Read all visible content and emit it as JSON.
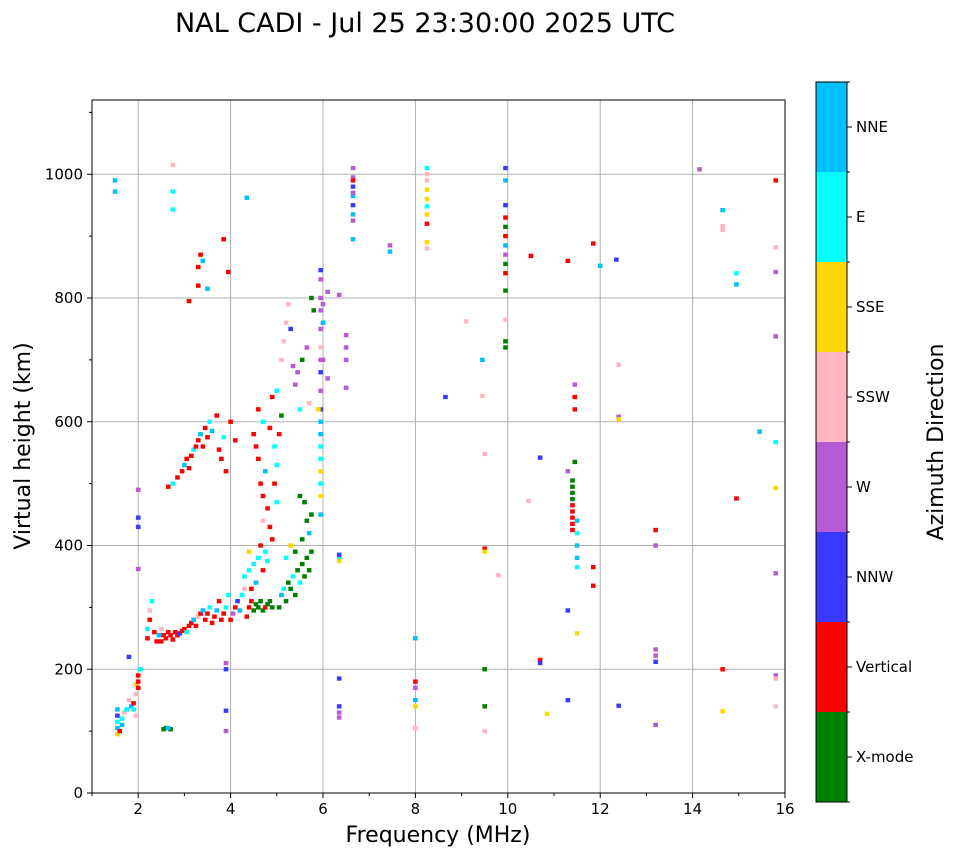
{
  "chart_data": {
    "type": "scatter",
    "title": "NAL CADI - Jul 25 23:30:00 2025 UTC",
    "xlabel": "Frequency (MHz)",
    "ylabel": "Virtual height (km)",
    "xlim": [
      1,
      16
    ],
    "ylim": [
      0,
      1120
    ],
    "xticks": [
      2,
      4,
      6,
      8,
      10,
      12,
      14,
      16
    ],
    "yticks": [
      0,
      200,
      400,
      600,
      800,
      1000
    ],
    "grid": true,
    "colorbar": {
      "label": "Azimuth Direction",
      "categories": [
        "X-mode",
        "Vertical",
        "NNW",
        "W",
        "SSW",
        "SSE",
        "E",
        "NNE"
      ],
      "colors": [
        "#008000",
        "#ff0000",
        "#3a3aff",
        "#b65ad6",
        "#ffb6c1",
        "#ffd700",
        "#00ffff",
        "#00bfff"
      ]
    },
    "point_format": [
      "frequency_mhz",
      "height_km",
      "category_index"
    ],
    "points": [
      [
        1.55,
        95,
        5
      ],
      [
        1.55,
        105,
        7
      ],
      [
        1.55,
        115,
        6
      ],
      [
        1.55,
        125,
        2
      ],
      [
        1.55,
        135,
        7
      ],
      [
        1.6,
        100,
        1
      ],
      [
        1.65,
        110,
        7
      ],
      [
        1.65,
        120,
        6
      ],
      [
        1.7,
        130,
        4
      ],
      [
        1.5,
        990,
        7
      ],
      [
        1.5,
        972,
        7
      ],
      [
        1.75,
        135,
        6
      ],
      [
        1.8,
        150,
        4
      ],
      [
        1.85,
        140,
        7
      ],
      [
        1.9,
        135,
        6
      ],
      [
        1.9,
        145,
        1
      ],
      [
        1.95,
        160,
        4
      ],
      [
        1.95,
        175,
        5
      ],
      [
        2.0,
        180,
        1
      ],
      [
        2.0,
        190,
        1
      ],
      [
        2.05,
        200,
        6
      ],
      [
        2.0,
        170,
        1
      ],
      [
        1.95,
        125,
        4
      ],
      [
        1.8,
        220,
        2
      ],
      [
        2.2,
        250,
        1
      ],
      [
        2.2,
        265,
        6
      ],
      [
        2.25,
        280,
        1
      ],
      [
        2.25,
        295,
        4
      ],
      [
        2.3,
        310,
        6
      ],
      [
        2.35,
        260,
        1
      ],
      [
        2.4,
        245,
        1
      ],
      [
        2.45,
        255,
        7
      ],
      [
        2.5,
        245,
        1
      ],
      [
        2.5,
        265,
        4
      ],
      [
        2.55,
        255,
        1
      ],
      [
        2.6,
        250,
        1
      ],
      [
        2.65,
        260,
        1
      ],
      [
        2.7,
        255,
        1
      ],
      [
        2.75,
        248,
        1
      ],
      [
        2.8,
        260,
        1
      ],
      [
        2.85,
        255,
        1
      ],
      [
        2.9,
        258,
        2
      ],
      [
        2.95,
        262,
        1
      ],
      [
        3.0,
        265,
        1
      ],
      [
        3.05,
        260,
        6
      ],
      [
        3.1,
        270,
        1
      ],
      [
        3.15,
        275,
        1
      ],
      [
        3.2,
        280,
        7
      ],
      [
        3.25,
        270,
        1
      ],
      [
        3.3,
        285,
        4
      ],
      [
        3.35,
        290,
        1
      ],
      [
        3.4,
        295,
        7
      ],
      [
        3.45,
        280,
        1
      ],
      [
        3.5,
        290,
        1
      ],
      [
        3.55,
        300,
        6
      ],
      [
        3.6,
        275,
        1
      ],
      [
        3.65,
        285,
        1
      ],
      [
        3.7,
        295,
        7
      ],
      [
        3.75,
        310,
        1
      ],
      [
        3.8,
        280,
        1
      ],
      [
        3.85,
        290,
        1
      ],
      [
        3.9,
        300,
        6
      ],
      [
        3.95,
        320,
        6
      ],
      [
        4.0,
        280,
        1
      ],
      [
        4.05,
        290,
        3
      ],
      [
        4.1,
        300,
        1
      ],
      [
        4.15,
        310,
        2
      ],
      [
        4.2,
        295,
        7
      ],
      [
        4.25,
        320,
        6
      ],
      [
        4.3,
        330,
        4
      ],
      [
        4.35,
        285,
        1
      ],
      [
        4.4,
        300,
        1
      ],
      [
        4.45,
        310,
        1
      ],
      [
        4.5,
        295,
        0
      ],
      [
        4.55,
        305,
        0
      ],
      [
        4.6,
        300,
        0
      ],
      [
        4.65,
        310,
        0
      ],
      [
        4.7,
        295,
        0
      ],
      [
        4.75,
        300,
        1
      ],
      [
        4.8,
        305,
        0
      ],
      [
        4.85,
        310,
        0
      ],
      [
        4.9,
        300,
        0
      ],
      [
        4.3,
        350,
        6
      ],
      [
        4.4,
        360,
        6
      ],
      [
        4.5,
        370,
        6
      ],
      [
        4.6,
        380,
        6
      ],
      [
        4.7,
        360,
        1
      ],
      [
        4.8,
        375,
        6
      ],
      [
        4.55,
        340,
        7
      ],
      [
        4.45,
        330,
        1
      ],
      [
        4.65,
        400,
        1
      ],
      [
        4.75,
        390,
        6
      ],
      [
        4.4,
        390,
        5
      ],
      [
        5.05,
        300,
        0
      ],
      [
        5.1,
        320,
        7
      ],
      [
        5.15,
        330,
        6
      ],
      [
        5.2,
        310,
        0
      ],
      [
        5.25,
        340,
        0
      ],
      [
        5.3,
        330,
        0
      ],
      [
        5.35,
        350,
        6
      ],
      [
        5.4,
        320,
        0
      ],
      [
        5.45,
        360,
        0
      ],
      [
        5.5,
        340,
        6
      ],
      [
        5.55,
        370,
        0
      ],
      [
        5.6,
        350,
        0
      ],
      [
        5.65,
        380,
        0
      ],
      [
        5.7,
        360,
        0
      ],
      [
        5.75,
        390,
        0
      ],
      [
        5.2,
        380,
        6
      ],
      [
        5.3,
        400,
        5
      ],
      [
        5.4,
        390,
        0
      ],
      [
        5.55,
        410,
        0
      ],
      [
        5.65,
        440,
        0
      ],
      [
        5.7,
        420,
        7
      ],
      [
        5.75,
        450,
        0
      ],
      [
        5.6,
        470,
        0
      ],
      [
        5.5,
        480,
        0
      ],
      [
        2.65,
        495,
        1
      ],
      [
        2.75,
        500,
        6
      ],
      [
        2.85,
        510,
        1
      ],
      [
        2.95,
        520,
        1
      ],
      [
        3.0,
        530,
        7
      ],
      [
        3.05,
        540,
        1
      ],
      [
        3.1,
        525,
        1
      ],
      [
        3.15,
        545,
        1
      ],
      [
        3.2,
        555,
        6
      ],
      [
        3.25,
        560,
        1
      ],
      [
        3.3,
        570,
        1
      ],
      [
        3.35,
        580,
        7
      ],
      [
        3.4,
        560,
        1
      ],
      [
        3.45,
        590,
        1
      ],
      [
        3.5,
        575,
        1
      ],
      [
        3.55,
        600,
        6
      ],
      [
        3.6,
        585,
        7
      ],
      [
        3.7,
        610,
        1
      ],
      [
        3.75,
        555,
        1
      ],
      [
        3.8,
        540,
        1
      ],
      [
        3.85,
        575,
        6
      ],
      [
        3.9,
        520,
        1
      ],
      [
        4.0,
        600,
        1
      ],
      [
        4.1,
        570,
        1
      ],
      [
        3.3,
        820,
        1
      ],
      [
        3.3,
        850,
        1
      ],
      [
        3.35,
        870,
        1
      ],
      [
        3.4,
        860,
        7
      ],
      [
        3.5,
        815,
        7
      ],
      [
        3.1,
        795,
        1
      ],
      [
        3.85,
        895,
        1
      ],
      [
        3.95,
        842,
        1
      ],
      [
        4.35,
        962,
        7
      ],
      [
        2.75,
        1015,
        4
      ],
      [
        2.75,
        972,
        6
      ],
      [
        2.75,
        943,
        6
      ],
      [
        4.5,
        580,
        1
      ],
      [
        4.55,
        560,
        1
      ],
      [
        4.6,
        540,
        1
      ],
      [
        4.65,
        500,
        1
      ],
      [
        4.7,
        480,
        1
      ],
      [
        4.75,
        520,
        7
      ],
      [
        4.8,
        460,
        1
      ],
      [
        4.85,
        430,
        1
      ],
      [
        4.9,
        410,
        1
      ],
      [
        4.95,
        500,
        1
      ],
      [
        4.85,
        590,
        1
      ],
      [
        4.95,
        560,
        6
      ],
      [
        5.0,
        530,
        6
      ],
      [
        5.0,
        470,
        6
      ],
      [
        4.7,
        600,
        6
      ],
      [
        4.6,
        620,
        1
      ],
      [
        4.9,
        640,
        1
      ],
      [
        5.05,
        580,
        1
      ],
      [
        5.1,
        610,
        0
      ],
      [
        5.0,
        650,
        6
      ],
      [
        4.7,
        440,
        4
      ],
      [
        5.1,
        700,
        4
      ],
      [
        5.2,
        760,
        4
      ],
      [
        5.25,
        790,
        4
      ],
      [
        5.15,
        730,
        4
      ],
      [
        5.3,
        750,
        2
      ],
      [
        5.35,
        690,
        3
      ],
      [
        5.4,
        660,
        3
      ],
      [
        5.45,
        680,
        3
      ],
      [
        5.5,
        620,
        6
      ],
      [
        5.55,
        700,
        0
      ],
      [
        5.65,
        720,
        3
      ],
      [
        5.7,
        630,
        4
      ],
      [
        5.75,
        800,
        0
      ],
      [
        5.8,
        780,
        0
      ],
      [
        5.95,
        450,
        7
      ],
      [
        5.95,
        480,
        5
      ],
      [
        5.95,
        500,
        6
      ],
      [
        5.95,
        520,
        5
      ],
      [
        5.95,
        540,
        6
      ],
      [
        5.95,
        560,
        6
      ],
      [
        5.95,
        580,
        7
      ],
      [
        5.95,
        600,
        7
      ],
      [
        5.95,
        620,
        2
      ],
      [
        5.95,
        650,
        3
      ],
      [
        5.95,
        680,
        2
      ],
      [
        5.95,
        700,
        3
      ],
      [
        5.95,
        720,
        4
      ],
      [
        5.95,
        750,
        3
      ],
      [
        5.95,
        780,
        3
      ],
      [
        5.95,
        800,
        3
      ],
      [
        5.95,
        830,
        3
      ],
      [
        5.95,
        845,
        2
      ],
      [
        5.9,
        620,
        5
      ],
      [
        6.0,
        790,
        3
      ],
      [
        6.0,
        760,
        7
      ],
      [
        6.0,
        700,
        3
      ],
      [
        6.1,
        810,
        3
      ],
      [
        6.1,
        670,
        3
      ],
      [
        6.35,
        805,
        3
      ],
      [
        6.5,
        740,
        3
      ],
      [
        6.5,
        720,
        3
      ],
      [
        6.5,
        700,
        3
      ],
      [
        6.5,
        655,
        3
      ],
      [
        6.35,
        380,
        6
      ],
      [
        6.35,
        385,
        2
      ],
      [
        6.35,
        375,
        5
      ],
      [
        6.35,
        185,
        2
      ],
      [
        6.35,
        140,
        2
      ],
      [
        6.35,
        130,
        3
      ],
      [
        6.35,
        122,
        3
      ],
      [
        6.65,
        1010,
        3
      ],
      [
        6.65,
        995,
        3
      ],
      [
        6.65,
        980,
        2
      ],
      [
        6.65,
        965,
        7
      ],
      [
        6.65,
        950,
        2
      ],
      [
        6.65,
        935,
        7
      ],
      [
        6.65,
        925,
        3
      ],
      [
        6.65,
        895,
        7
      ],
      [
        6.65,
        990,
        1
      ],
      [
        6.65,
        970,
        3
      ],
      [
        7.45,
        885,
        3
      ],
      [
        7.45,
        875,
        7
      ],
      [
        8.0,
        250,
        7
      ],
      [
        8.0,
        180,
        1
      ],
      [
        8.0,
        170,
        3
      ],
      [
        8.0,
        150,
        7
      ],
      [
        8.0,
        140,
        5
      ],
      [
        8.0,
        105,
        4
      ],
      [
        8.25,
        1010,
        6
      ],
      [
        8.25,
        1000,
        4
      ],
      [
        8.25,
        990,
        4
      ],
      [
        8.25,
        975,
        5
      ],
      [
        8.25,
        960,
        5
      ],
      [
        8.25,
        948,
        6
      ],
      [
        8.25,
        935,
        5
      ],
      [
        8.25,
        920,
        1
      ],
      [
        8.25,
        890,
        5
      ],
      [
        8.25,
        880,
        4
      ],
      [
        8.65,
        640,
        2
      ],
      [
        9.1,
        762,
        4
      ],
      [
        9.45,
        700,
        7
      ],
      [
        9.45,
        642,
        4
      ],
      [
        9.5,
        548,
        4
      ],
      [
        9.5,
        395,
        1
      ],
      [
        9.5,
        390,
        5
      ],
      [
        9.5,
        200,
        0
      ],
      [
        9.5,
        140,
        0
      ],
      [
        9.5,
        100,
        4
      ],
      [
        9.8,
        352,
        4
      ],
      [
        9.95,
        1010,
        2
      ],
      [
        9.95,
        990,
        7
      ],
      [
        9.95,
        950,
        2
      ],
      [
        9.95,
        930,
        1
      ],
      [
        9.95,
        915,
        0
      ],
      [
        9.95,
        900,
        1
      ],
      [
        9.95,
        885,
        7
      ],
      [
        9.95,
        855,
        0
      ],
      [
        9.95,
        840,
        1
      ],
      [
        9.95,
        812,
        0
      ],
      [
        9.95,
        765,
        4
      ],
      [
        9.95,
        730,
        0
      ],
      [
        9.95,
        720,
        0
      ],
      [
        9.95,
        870,
        3
      ],
      [
        10.45,
        472,
        4
      ],
      [
        10.5,
        868,
        1
      ],
      [
        10.7,
        542,
        2
      ],
      [
        10.7,
        215,
        1
      ],
      [
        10.7,
        210,
        2
      ],
      [
        10.85,
        128,
        5
      ],
      [
        11.3,
        860,
        1
      ],
      [
        11.3,
        520,
        3
      ],
      [
        11.3,
        295,
        2
      ],
      [
        11.3,
        150,
        2
      ],
      [
        11.4,
        505,
        0
      ],
      [
        11.4,
        495,
        0
      ],
      [
        11.4,
        485,
        0
      ],
      [
        11.4,
        475,
        0
      ],
      [
        11.4,
        465,
        1
      ],
      [
        11.4,
        455,
        1
      ],
      [
        11.4,
        445,
        1
      ],
      [
        11.4,
        435,
        1
      ],
      [
        11.4,
        425,
        1
      ],
      [
        11.45,
        620,
        1
      ],
      [
        11.45,
        640,
        1
      ],
      [
        11.45,
        660,
        3
      ],
      [
        11.45,
        535,
        0
      ],
      [
        11.5,
        440,
        7
      ],
      [
        11.5,
        420,
        6
      ],
      [
        11.5,
        400,
        7
      ],
      [
        11.5,
        380,
        7
      ],
      [
        11.5,
        365,
        6
      ],
      [
        11.5,
        258,
        5
      ],
      [
        11.85,
        888,
        1
      ],
      [
        11.85,
        365,
        1
      ],
      [
        11.85,
        335,
        1
      ],
      [
        12.0,
        852,
        7
      ],
      [
        12.35,
        862,
        2
      ],
      [
        12.4,
        692,
        4
      ],
      [
        12.4,
        608,
        3
      ],
      [
        12.4,
        604,
        5
      ],
      [
        12.4,
        141,
        2
      ],
      [
        13.2,
        425,
        1
      ],
      [
        13.2,
        400,
        3
      ],
      [
        13.2,
        232,
        3
      ],
      [
        13.2,
        222,
        3
      ],
      [
        13.2,
        212,
        2
      ],
      [
        13.2,
        110,
        3
      ],
      [
        14.15,
        1008,
        3
      ],
      [
        14.65,
        942,
        7
      ],
      [
        14.65,
        916,
        4
      ],
      [
        14.65,
        910,
        4
      ],
      [
        14.65,
        200,
        1
      ],
      [
        14.65,
        132,
        5
      ],
      [
        14.95,
        840,
        6
      ],
      [
        14.95,
        822,
        7
      ],
      [
        14.95,
        476,
        1
      ],
      [
        15.45,
        584,
        7
      ],
      [
        15.8,
        990,
        1
      ],
      [
        15.8,
        882,
        4
      ],
      [
        15.8,
        842,
        3
      ],
      [
        15.8,
        738,
        3
      ],
      [
        15.8,
        567,
        6
      ],
      [
        15.8,
        493,
        5
      ],
      [
        15.8,
        355,
        3
      ],
      [
        15.8,
        190,
        3
      ],
      [
        15.8,
        185,
        4
      ],
      [
        15.8,
        140,
        4
      ],
      [
        2.0,
        490,
        3
      ],
      [
        2.0,
        445,
        2
      ],
      [
        2.0,
        430,
        2
      ],
      [
        2.0,
        362,
        3
      ],
      [
        3.9,
        210,
        3
      ],
      [
        3.9,
        200,
        2
      ],
      [
        3.9,
        133,
        2
      ],
      [
        3.9,
        100,
        3
      ],
      [
        2.6,
        105,
        0
      ],
      [
        2.55,
        103,
        0
      ],
      [
        2.7,
        103,
        0
      ],
      [
        2.65,
        105,
        7
      ]
    ]
  }
}
